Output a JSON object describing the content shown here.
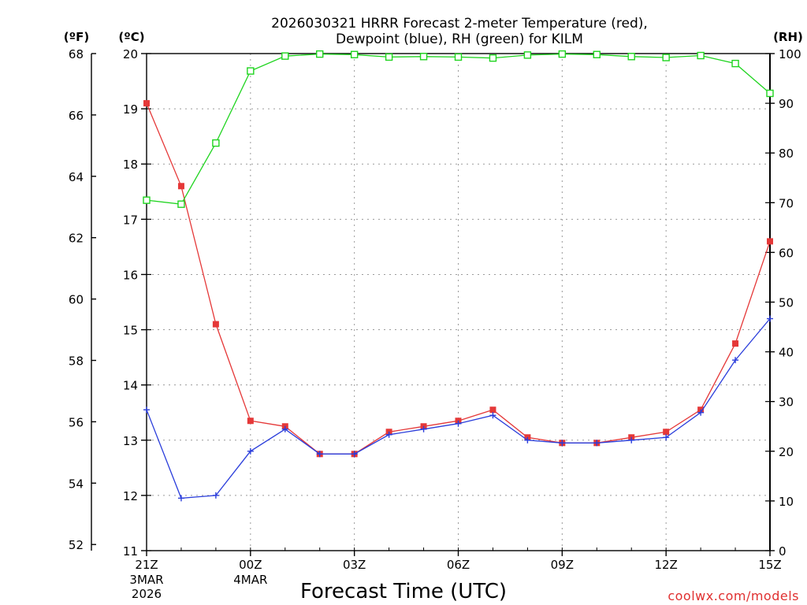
{
  "chart_data": {
    "type": "line",
    "title_lines": [
      "2026030321 HRRR Forecast 2-meter Temperature (red),",
      "Dewpoint (blue), RH (green) for KILM"
    ],
    "xlabel": "Forecast Time (UTC)",
    "credit": "coolwx.com/models",
    "units": {
      "fahrenheit": "(ºF)",
      "celsius": "(ºC)",
      "rh": "(RH)"
    },
    "x_count": 19,
    "x_ticks": [
      {
        "i": 0,
        "label": "21Z",
        "sub": [
          "3MAR",
          "2026"
        ]
      },
      {
        "i": 3,
        "label": "00Z",
        "sub": [
          "4MAR"
        ]
      },
      {
        "i": 6,
        "label": "03Z",
        "sub": []
      },
      {
        "i": 9,
        "label": "06Z",
        "sub": []
      },
      {
        "i": 12,
        "label": "09Z",
        "sub": []
      },
      {
        "i": 15,
        "label": "12Z",
        "sub": []
      },
      {
        "i": 18,
        "label": "15Z",
        "sub": []
      }
    ],
    "celsius_axis": {
      "range": [
        11,
        20
      ],
      "ticks": [
        11,
        12,
        13,
        14,
        15,
        16,
        17,
        18,
        19,
        20
      ]
    },
    "fahrenheit_axis": {
      "ticks": [
        52,
        54,
        56,
        58,
        60,
        62,
        64,
        66,
        68
      ]
    },
    "rh_axis": {
      "range": [
        0,
        100
      ],
      "ticks": [
        0,
        10,
        20,
        30,
        40,
        50,
        60,
        70,
        80,
        90,
        100
      ]
    },
    "series": [
      {
        "name": "Temperature",
        "color": "#e53838",
        "marker": "filled-square",
        "axis": "celsius",
        "values": [
          19.1,
          17.6,
          15.1,
          13.35,
          13.25,
          12.75,
          12.75,
          13.15,
          13.25,
          13.35,
          13.55,
          13.05,
          12.95,
          12.95,
          13.05,
          13.15,
          13.55,
          14.75,
          16.6
        ]
      },
      {
        "name": "Dewpoint",
        "color": "#2a3ddb",
        "marker": "plus",
        "axis": "celsius",
        "values": [
          13.55,
          11.95,
          12.0,
          12.8,
          13.2,
          12.75,
          12.75,
          13.1,
          13.2,
          13.3,
          13.45,
          13.0,
          12.95,
          12.95,
          13.0,
          13.05,
          13.5,
          14.45,
          15.2
        ]
      },
      {
        "name": "RH",
        "color": "#1fd41f",
        "marker": "open-square",
        "axis": "rh",
        "values": [
          70.5,
          69.7,
          82.0,
          96.5,
          99.5,
          99.9,
          99.8,
          99.3,
          99.4,
          99.3,
          99.1,
          99.7,
          99.9,
          99.8,
          99.4,
          99.2,
          99.6,
          98.0,
          92.0
        ]
      }
    ]
  }
}
